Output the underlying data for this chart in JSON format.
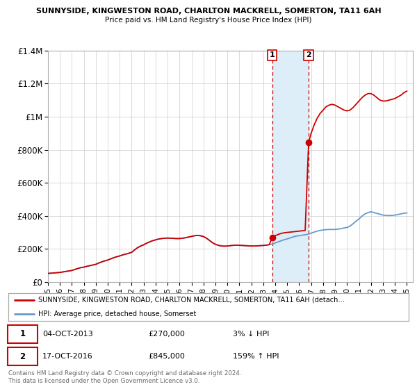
{
  "title1": "SUNNYSIDE, KINGWESTON ROAD, CHARLTON MACKRELL, SOMERTON, TA11 6AH",
  "title2": "Price paid vs. HM Land Registry's House Price Index (HPI)",
  "yticks": [
    0,
    200000,
    400000,
    600000,
    800000,
    1000000,
    1200000,
    1400000
  ],
  "ytick_labels": [
    "£0",
    "£200K",
    "£400K",
    "£600K",
    "£800K",
    "£1M",
    "£1.2M",
    "£1.4M"
  ],
  "xmin": 1995.0,
  "xmax": 2025.5,
  "ymin": 0,
  "ymax": 1400000,
  "sale1_year": 2013.75,
  "sale1_price": 270000,
  "sale2_year": 2016.79,
  "sale2_price": 845000,
  "line_color_property": "#cc0000",
  "line_color_hpi": "#6699cc",
  "shade_color": "#ddeef8",
  "vline_color": "#cc0000",
  "legend_label1": "SUNNYSIDE, KINGWESTON ROAD, CHARLTON MACKRELL, SOMERTON, TA11 6AH (detach…",
  "legend_label2": "HPI: Average price, detached house, Somerset",
  "table_row1": [
    "1",
    "04-OCT-2013",
    "£270,000",
    "3% ↓ HPI"
  ],
  "table_row2": [
    "2",
    "17-OCT-2016",
    "£845,000",
    "159% ↑ HPI"
  ],
  "footer": "Contains HM Land Registry data © Crown copyright and database right 2024.\nThis data is licensed under the Open Government Licence v3.0.",
  "hpi_x": [
    1995.0,
    1995.08,
    1995.17,
    1995.25,
    1995.33,
    1995.42,
    1995.5,
    1995.58,
    1995.67,
    1995.75,
    1995.83,
    1995.92,
    1996.0,
    1996.25,
    1996.5,
    1996.75,
    1997.0,
    1997.25,
    1997.5,
    1997.75,
    1998.0,
    1998.25,
    1998.5,
    1998.75,
    1999.0,
    1999.25,
    1999.5,
    1999.75,
    2000.0,
    2000.25,
    2000.5,
    2000.75,
    2001.0,
    2001.25,
    2001.5,
    2001.75,
    2002.0,
    2002.25,
    2002.5,
    2002.75,
    2003.0,
    2003.25,
    2003.5,
    2003.75,
    2004.0,
    2004.25,
    2004.5,
    2004.75,
    2005.0,
    2005.25,
    2005.5,
    2005.75,
    2006.0,
    2006.25,
    2006.5,
    2006.75,
    2007.0,
    2007.25,
    2007.5,
    2007.75,
    2008.0,
    2008.25,
    2008.5,
    2008.75,
    2009.0,
    2009.25,
    2009.5,
    2009.75,
    2010.0,
    2010.25,
    2010.5,
    2010.75,
    2011.0,
    2011.25,
    2011.5,
    2011.75,
    2012.0,
    2012.25,
    2012.5,
    2012.75,
    2013.0,
    2013.25,
    2013.5,
    2013.75,
    2013.83,
    2013.92,
    2014.0,
    2014.25,
    2014.5,
    2014.75,
    2015.0,
    2015.25,
    2015.5,
    2015.75,
    2016.0,
    2016.25,
    2016.5,
    2016.75,
    2016.83,
    2016.92,
    2017.0,
    2017.25,
    2017.5,
    2017.75,
    2018.0,
    2018.25,
    2018.5,
    2018.75,
    2019.0,
    2019.25,
    2019.5,
    2019.75,
    2020.0,
    2020.25,
    2020.5,
    2020.75,
    2021.0,
    2021.25,
    2021.5,
    2021.75,
    2022.0,
    2022.25,
    2022.5,
    2022.75,
    2023.0,
    2023.25,
    2023.5,
    2023.75,
    2024.0,
    2024.25,
    2024.5,
    2024.75,
    2025.0
  ],
  "hpi_y": [
    52000,
    52500,
    53000,
    53500,
    54000,
    54500,
    55000,
    55500,
    56000,
    56500,
    57000,
    57500,
    58000,
    61000,
    64000,
    67000,
    70000,
    76000,
    82000,
    87000,
    90000,
    95000,
    99000,
    103000,
    107000,
    115000,
    122000,
    128000,
    133000,
    140000,
    147000,
    153000,
    158000,
    164000,
    169000,
    174000,
    180000,
    195000,
    208000,
    218000,
    225000,
    235000,
    243000,
    250000,
    255000,
    260000,
    263000,
    265000,
    266000,
    265000,
    264000,
    263000,
    263000,
    265000,
    268000,
    272000,
    276000,
    280000,
    282000,
    280000,
    275000,
    265000,
    252000,
    238000,
    228000,
    222000,
    218000,
    217000,
    218000,
    220000,
    222000,
    223000,
    222000,
    221000,
    220000,
    219000,
    218000,
    218000,
    219000,
    220000,
    221000,
    223000,
    226000,
    230000,
    232000,
    234000,
    237000,
    243000,
    250000,
    256000,
    261000,
    267000,
    273000,
    278000,
    280000,
    283000,
    286000,
    289000,
    291000,
    293000,
    296000,
    302000,
    308000,
    312000,
    315000,
    317000,
    318000,
    318000,
    318000,
    320000,
    323000,
    327000,
    330000,
    338000,
    352000,
    368000,
    382000,
    398000,
    412000,
    420000,
    425000,
    420000,
    415000,
    410000,
    405000,
    403000,
    402000,
    403000,
    405000,
    408000,
    412000,
    416000,
    418000
  ],
  "prop_x": [
    1995.0,
    1995.08,
    1995.17,
    1995.25,
    1995.33,
    1995.42,
    1995.5,
    1995.58,
    1995.67,
    1995.75,
    1995.83,
    1995.92,
    1996.0,
    1996.25,
    1996.5,
    1996.75,
    1997.0,
    1997.25,
    1997.5,
    1997.75,
    1998.0,
    1998.25,
    1998.5,
    1998.75,
    1999.0,
    1999.25,
    1999.5,
    1999.75,
    2000.0,
    2000.25,
    2000.5,
    2000.75,
    2001.0,
    2001.25,
    2001.5,
    2001.75,
    2002.0,
    2002.25,
    2002.5,
    2002.75,
    2003.0,
    2003.25,
    2003.5,
    2003.75,
    2004.0,
    2004.25,
    2004.5,
    2004.75,
    2005.0,
    2005.25,
    2005.5,
    2005.75,
    2006.0,
    2006.25,
    2006.5,
    2006.75,
    2007.0,
    2007.25,
    2007.5,
    2007.75,
    2008.0,
    2008.25,
    2008.5,
    2008.75,
    2009.0,
    2009.25,
    2009.5,
    2009.75,
    2010.0,
    2010.25,
    2010.5,
    2010.75,
    2011.0,
    2011.25,
    2011.5,
    2011.75,
    2012.0,
    2012.25,
    2012.5,
    2012.75,
    2013.0,
    2013.25,
    2013.5,
    2013.75,
    2014.0,
    2014.25,
    2014.5,
    2014.75,
    2015.0,
    2015.25,
    2015.5,
    2015.75,
    2016.0,
    2016.25,
    2016.5,
    2016.79,
    2017.0,
    2017.25,
    2017.5,
    2017.75,
    2018.0,
    2018.25,
    2018.5,
    2018.75,
    2019.0,
    2019.25,
    2019.5,
    2019.75,
    2020.0,
    2020.25,
    2020.5,
    2020.75,
    2021.0,
    2021.25,
    2021.5,
    2021.75,
    2022.0,
    2022.25,
    2022.5,
    2022.75,
    2023.0,
    2023.25,
    2023.5,
    2023.75,
    2024.0,
    2024.25,
    2024.5,
    2024.75,
    2025.0
  ],
  "prop_y": [
    52000,
    52500,
    53000,
    53500,
    54000,
    54500,
    55000,
    55500,
    56000,
    56500,
    57000,
    57500,
    58000,
    61000,
    64000,
    67000,
    70000,
    76000,
    82000,
    87000,
    90000,
    95000,
    99000,
    103000,
    107000,
    115000,
    122000,
    128000,
    133000,
    140000,
    147000,
    153000,
    158000,
    164000,
    169000,
    174000,
    180000,
    195000,
    208000,
    218000,
    225000,
    235000,
    243000,
    250000,
    255000,
    260000,
    263000,
    265000,
    266000,
    265000,
    264000,
    263000,
    263000,
    265000,
    268000,
    272000,
    276000,
    280000,
    282000,
    280000,
    275000,
    265000,
    252000,
    238000,
    228000,
    222000,
    218000,
    217000,
    218000,
    220000,
    222000,
    223000,
    222000,
    221000,
    220000,
    219000,
    218000,
    218000,
    219000,
    220000,
    221000,
    223000,
    226000,
    270000,
    280000,
    288000,
    294000,
    298000,
    300000,
    302000,
    304000,
    306000,
    308000,
    310000,
    312000,
    845000,
    900000,
    950000,
    990000,
    1020000,
    1040000,
    1060000,
    1070000,
    1075000,
    1070000,
    1060000,
    1050000,
    1040000,
    1035000,
    1040000,
    1055000,
    1075000,
    1095000,
    1115000,
    1130000,
    1140000,
    1140000,
    1130000,
    1115000,
    1100000,
    1095000,
    1095000,
    1100000,
    1105000,
    1110000,
    1120000,
    1130000,
    1145000,
    1155000
  ]
}
